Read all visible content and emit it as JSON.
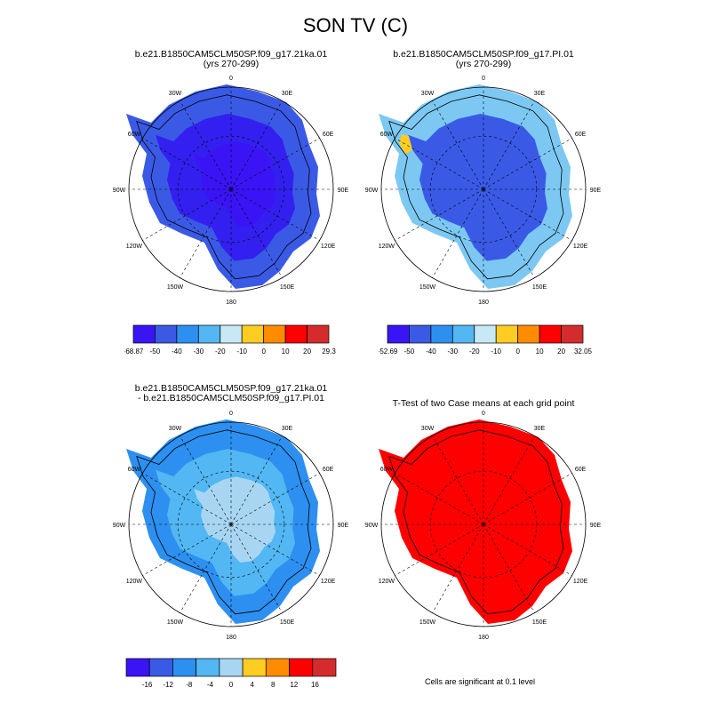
{
  "title": "SON TV (C)",
  "panels": [
    {
      "id": "case1",
      "title_lines": [
        "b.e21.B1850CAM5CLM50SP.f09_g17.21ka.01",
        "(yrs 270-299)"
      ],
      "colorbar": {
        "colors": [
          "#3a14f5",
          "#3a5ae6",
          "#2d8ff0",
          "#52b7f2",
          "#c8e8f5",
          "#ffcc22",
          "#ff8c00",
          "#ff0000",
          "#d42c2c"
        ],
        "labels": [
          "-68.87",
          "-50",
          "-40",
          "-30",
          "-20",
          "-10",
          "0",
          "10",
          "20",
          "29.3"
        ]
      },
      "fill_colors": {
        "outer": "#3a5ae6",
        "mid": "#3320f0",
        "inner": "#3a14f5"
      }
    },
    {
      "id": "case2",
      "title_lines": [
        "b.e21.B1850CAM5CLM50SP.f09_g17.PI.01",
        "(yrs 270-299)"
      ],
      "colorbar": {
        "colors": [
          "#3a14f5",
          "#3a5ae6",
          "#2d8ff0",
          "#52b7f2",
          "#c8e8f5",
          "#ffcc22",
          "#ff8c00",
          "#ff0000",
          "#d42c2c"
        ],
        "labels": [
          "-52.69",
          "-50",
          "-40",
          "-30",
          "-20",
          "-10",
          "0",
          "10",
          "20",
          "32.05"
        ]
      },
      "fill_colors": {
        "outer": "#7cc8f2",
        "mid": "#3a5ae6",
        "inner": "#3a5ae6"
      }
    },
    {
      "id": "difference",
      "title_lines": [
        "b.e21.B1850CAM5CLM50SP.f09_g17.21ka.01",
        "- b.e21.B1850CAM5CLM50SP.f09_g17.PI.01"
      ],
      "colorbar": {
        "colors": [
          "#3a14f5",
          "#3a5ae6",
          "#2d8ff0",
          "#52b7f2",
          "#a8d6f2",
          "#ffcc22",
          "#ff8c00",
          "#ff0000",
          "#d42c2c"
        ],
        "labels": [
          "",
          "-16",
          "-12",
          "-8",
          "-4",
          "0",
          "4",
          "8",
          "12",
          "16",
          ""
        ]
      },
      "fill_colors": {
        "outer": "#2d8ff0",
        "mid": "#52b7f2",
        "inner": "#a8d6f2"
      }
    },
    {
      "id": "ttest",
      "title_lines": [
        "T-Test of two Case means at each grid point"
      ],
      "note": "Cells are significant at 0.1 level",
      "fill_colors": {
        "outer": "#ff0000",
        "mid": "#ff0000",
        "inner": "#ff0000"
      }
    }
  ],
  "longitude_labels": [
    "0",
    "30E",
    "60E",
    "90E",
    "120E",
    "150E",
    "180",
    "150W",
    "120W",
    "90W",
    "60W",
    "30W"
  ]
}
